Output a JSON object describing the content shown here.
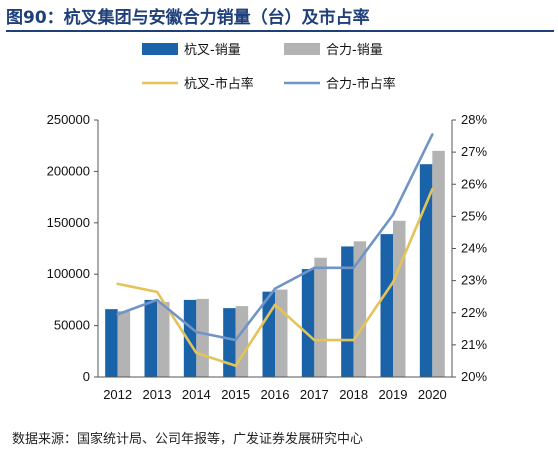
{
  "title": "图90：杭叉集团与安徽合力销量（台）及市占率",
  "source": "数据来源：国家统计局、公司年报等，广发证券发展研究中心",
  "chart_data": {
    "type": "bar",
    "categories": [
      "2012",
      "2013",
      "2014",
      "2015",
      "2016",
      "2017",
      "2018",
      "2019",
      "2020"
    ],
    "series": [
      {
        "name": "杭叉-销量",
        "kind": "bar",
        "axis": "left",
        "color": "#1a63a8",
        "values": [
          66000,
          75000,
          75000,
          67000,
          83000,
          105000,
          127000,
          139000,
          207000
        ]
      },
      {
        "name": "合力-销量",
        "kind": "bar",
        "axis": "left",
        "color": "#b3b3b3",
        "values": [
          64000,
          73000,
          76000,
          69000,
          85000,
          116000,
          132000,
          152000,
          220000
        ]
      },
      {
        "name": "杭叉-市占率",
        "kind": "line",
        "axis": "right",
        "color": "#e3c35a",
        "values": [
          22.9,
          22.65,
          20.75,
          20.35,
          22.25,
          21.15,
          21.15,
          22.95,
          25.85
        ]
      },
      {
        "name": "合力-市占率",
        "kind": "line",
        "axis": "right",
        "color": "#7194c7",
        "values": [
          21.95,
          22.4,
          21.4,
          21.15,
          22.75,
          23.4,
          23.4,
          25.05,
          27.55
        ]
      }
    ],
    "y_left": {
      "ylim": [
        0,
        250000
      ],
      "ticks": [
        "0",
        "50000",
        "100000",
        "150000",
        "200000",
        "250000"
      ]
    },
    "y_right": {
      "ylim": [
        20,
        28
      ],
      "ticks": [
        "20%",
        "21%",
        "22%",
        "23%",
        "24%",
        "25%",
        "26%",
        "27%",
        "28%"
      ]
    },
    "grid": false,
    "legend": "top"
  }
}
